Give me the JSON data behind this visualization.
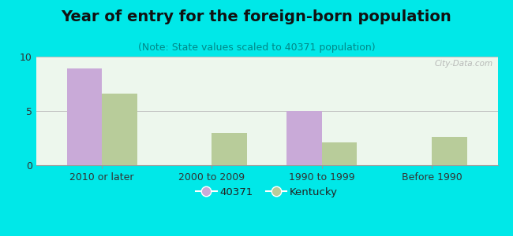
{
  "title": "Year of entry for the foreign-born population",
  "subtitle": "(Note: State values scaled to 40371 population)",
  "categories": [
    "2010 or later",
    "2000 to 2009",
    "1990 to 1999",
    "Before 1990"
  ],
  "values_40371": [
    8.9,
    0,
    5.0,
    0
  ],
  "values_kentucky": [
    6.6,
    3.0,
    2.1,
    2.6
  ],
  "bar_color_40371": "#c9aad8",
  "bar_color_kentucky": "#b8cc9a",
  "background_outer": "#00e8e8",
  "background_inner_tl": "#e8f5e8",
  "background_inner_br": "#f8fff8",
  "ylim": [
    0,
    10
  ],
  "yticks": [
    0,
    5,
    10
  ],
  "bar_width": 0.32,
  "legend_label_1": "40371",
  "legend_label_2": "Kentucky",
  "watermark": "City-Data.com",
  "title_fontsize": 14,
  "subtitle_fontsize": 9,
  "tick_fontsize": 9
}
